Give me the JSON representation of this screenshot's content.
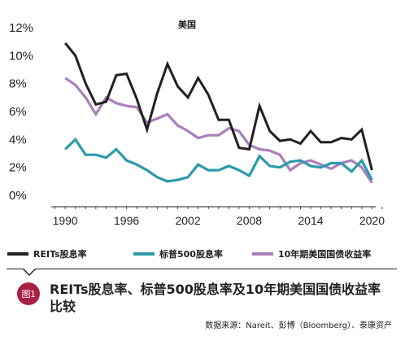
{
  "chart_data": {
    "type": "line",
    "title": "美国",
    "xlabel": "",
    "ylabel": "",
    "x_ticks": [
      "1990",
      "1996",
      "2002",
      "2008",
      "2014",
      "2020"
    ],
    "y_ticks": [
      "0%",
      "2%",
      "4%",
      "6%",
      "8%",
      "10%",
      "12%"
    ],
    "xlim": [
      1988,
      2021
    ],
    "ylim": [
      0,
      12
    ],
    "legend_position": "bottom",
    "grid": false,
    "series": [
      {
        "name": "REITs股息率",
        "color": "#231f20",
        "points": [
          [
            1990,
            10.9
          ],
          [
            1991,
            10.0
          ],
          [
            1992,
            8.0
          ],
          [
            1993,
            6.5
          ],
          [
            1994,
            6.7
          ],
          [
            1995,
            8.6
          ],
          [
            1996,
            8.7
          ],
          [
            1997,
            6.9
          ],
          [
            1998,
            4.7
          ],
          [
            1999,
            7.3
          ],
          [
            2000,
            9.4
          ],
          [
            2001,
            7.8
          ],
          [
            2002,
            7.0
          ],
          [
            2003,
            8.4
          ],
          [
            2004,
            7.2
          ],
          [
            2005,
            5.4
          ],
          [
            2006,
            5.4
          ],
          [
            2007,
            3.4
          ],
          [
            2008,
            3.3
          ],
          [
            2009,
            6.4
          ],
          [
            2010,
            4.6
          ],
          [
            2011,
            3.9
          ],
          [
            2012,
            4.0
          ],
          [
            2013,
            3.7
          ],
          [
            2014,
            4.6
          ],
          [
            2015,
            3.8
          ],
          [
            2016,
            3.8
          ],
          [
            2017,
            4.1
          ],
          [
            2018,
            4.0
          ],
          [
            2019,
            4.7
          ],
          [
            2020,
            1.8
          ]
        ]
      },
      {
        "name": "标普500股息率",
        "color": "#2b9aac",
        "points": [
          [
            1990,
            3.3
          ],
          [
            1991,
            4.0
          ],
          [
            1992,
            2.9
          ],
          [
            1993,
            2.9
          ],
          [
            1994,
            2.7
          ],
          [
            1995,
            3.3
          ],
          [
            1996,
            2.5
          ],
          [
            1997,
            2.2
          ],
          [
            1998,
            1.8
          ],
          [
            1999,
            1.3
          ],
          [
            2000,
            1.0
          ],
          [
            2001,
            1.1
          ],
          [
            2002,
            1.3
          ],
          [
            2003,
            2.2
          ],
          [
            2004,
            1.8
          ],
          [
            2005,
            1.8
          ],
          [
            2006,
            2.1
          ],
          [
            2007,
            1.8
          ],
          [
            2008,
            1.4
          ],
          [
            2009,
            2.8
          ],
          [
            2010,
            2.1
          ],
          [
            2011,
            2.0
          ],
          [
            2012,
            2.4
          ],
          [
            2013,
            2.5
          ],
          [
            2014,
            2.1
          ],
          [
            2015,
            2.0
          ],
          [
            2016,
            2.3
          ],
          [
            2017,
            2.3
          ],
          [
            2018,
            1.7
          ],
          [
            2019,
            2.5
          ],
          [
            2020,
            1.1
          ]
        ]
      },
      {
        "name": "10年期美国国债收益率",
        "color": "#a97fbb",
        "points": [
          [
            1990,
            8.4
          ],
          [
            1991,
            7.9
          ],
          [
            1992,
            7.0
          ],
          [
            1993,
            5.8
          ],
          [
            1994,
            7.0
          ],
          [
            1995,
            6.6
          ],
          [
            1996,
            6.4
          ],
          [
            1997,
            6.3
          ],
          [
            1998,
            5.2
          ],
          [
            1999,
            5.5
          ],
          [
            2000,
            5.8
          ],
          [
            2001,
            5.0
          ],
          [
            2002,
            4.6
          ],
          [
            2003,
            4.1
          ],
          [
            2004,
            4.3
          ],
          [
            2005,
            4.3
          ],
          [
            2006,
            4.8
          ],
          [
            2007,
            4.6
          ],
          [
            2008,
            3.6
          ],
          [
            2009,
            3.3
          ],
          [
            2010,
            3.2
          ],
          [
            2011,
            2.9
          ],
          [
            2012,
            1.8
          ],
          [
            2013,
            2.3
          ],
          [
            2014,
            2.5
          ],
          [
            2015,
            2.2
          ],
          [
            2016,
            1.9
          ],
          [
            2017,
            2.3
          ],
          [
            2018,
            2.5
          ],
          [
            2019,
            2.0
          ],
          [
            2020,
            0.9
          ]
        ]
      }
    ]
  },
  "figure": {
    "badge": "图1",
    "caption": "REITs股息率、标普500股息率及10年期美国国债收益率比较",
    "source": "数据来源：Nareit、彭博（Bloomberg）、泰康资产"
  }
}
